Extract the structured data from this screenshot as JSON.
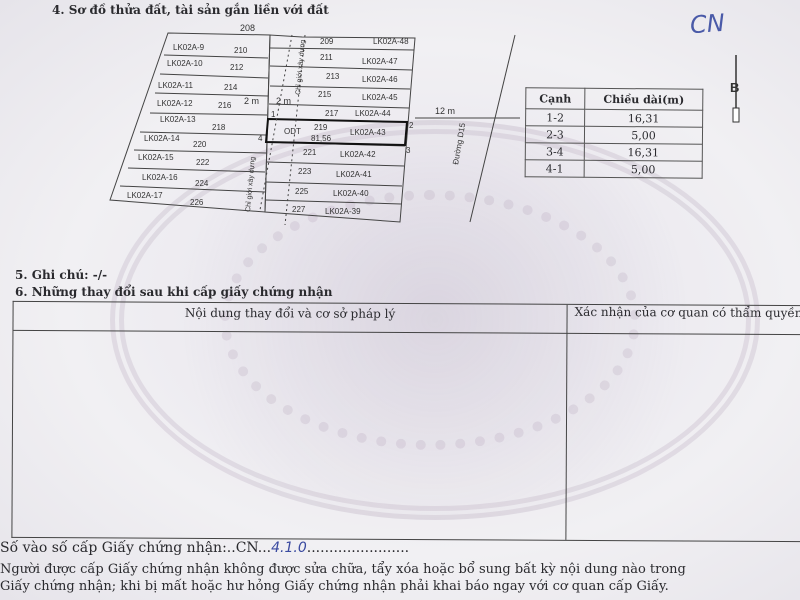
{
  "section4": {
    "title": "4. Sơ đồ thửa đất, tài sản gắn liền với đất"
  },
  "handwritten_mark": "CN",
  "map": {
    "top_left_number": "208",
    "left_lots": [
      {
        "code": "LK02A-9",
        "number": "210"
      },
      {
        "code": "LK02A-10",
        "number": "212"
      },
      {
        "code": "LK02A-11",
        "number": "214"
      },
      {
        "code": "LK02A-12",
        "number": "216"
      },
      {
        "code": "LK02A-13",
        "number": "218"
      },
      {
        "code": "LK02A-14",
        "number": "220"
      },
      {
        "code": "LK02A-15",
        "number": "222"
      },
      {
        "code": "LK02A-16",
        "number": "224"
      },
      {
        "code": "LK02A-17",
        "number": "226"
      }
    ],
    "right_lots": [
      {
        "code": "LK02A-48",
        "number": "209"
      },
      {
        "code": "LK02A-47",
        "number": "211"
      },
      {
        "code": "LK02A-46",
        "number": "213"
      },
      {
        "code": "LK02A-45",
        "number": "215"
      },
      {
        "code": "LK02A-44",
        "number": "217"
      },
      {
        "code": "LK02A-43",
        "number": "219"
      },
      {
        "code": "LK02A-42",
        "number": "221"
      },
      {
        "code": "LK02A-41",
        "number": "223"
      },
      {
        "code": "LK02A-40",
        "number": "225"
      },
      {
        "code": "LK02A-39",
        "number": "227"
      }
    ],
    "subject_lot": {
      "land_type": "ODT",
      "number": "219",
      "area": "81,56"
    },
    "setback_left": "2 m",
    "setback_right": "2 m",
    "boundary_label_1": "Chỉ giới xây dựng",
    "boundary_label_2": "Chỉ giới xây dựng",
    "road_width": "12 m",
    "road_name": "Đường D15",
    "vertex_1": "1",
    "vertex_2": "2",
    "vertex_3": "3",
    "vertex_4": "4",
    "north_label": "B"
  },
  "edge_table": {
    "headers": [
      "Cạnh",
      "Chiều dài(m)"
    ],
    "rows": [
      [
        "1-2",
        "16,31"
      ],
      [
        "2-3",
        "5,00"
      ],
      [
        "3-4",
        "16,31"
      ],
      [
        "4-1",
        "5,00"
      ]
    ]
  },
  "section5": {
    "title": "5. Ghi chú: -/-"
  },
  "section6": {
    "title": "6. Những thay đổi sau khi cấp giấy chứng nhận",
    "col1": "Nội dung thay đổi và cơ sở pháp lý",
    "col2": "Xác nhận của cơ quan có thẩm quyền"
  },
  "register": {
    "label": "Số vào số cấp Giấy chứng nhận:..",
    "value": "CN",
    "handwritten": "4.1.0",
    "dots": "......................."
  },
  "notice": {
    "line1": "Người được cấp Giấy chứng nhận không được sửa chữa, tẩy xóa hoặc bổ sung bất kỳ nội dung nào trong",
    "line2": "Giấy chứng nhận; khi bị mất hoặc hư hỏng Giấy chứng nhận phải khai báo ngay với cơ quan cấp Giấy."
  }
}
